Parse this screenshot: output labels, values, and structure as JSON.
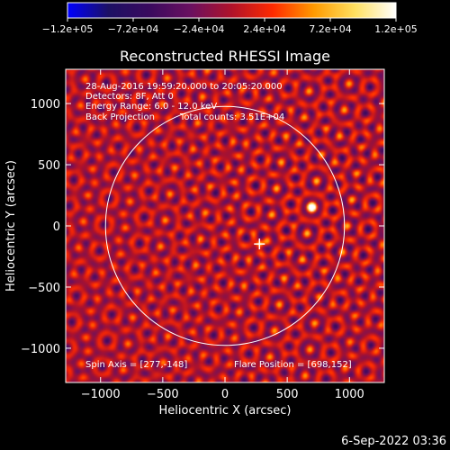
{
  "colorbar": {
    "tick_labels": [
      "-1.2e+05",
      "-7.2e+04",
      "-2.4e+04",
      "2.4e+04",
      "7.2e+04",
      "1.2e+05"
    ],
    "range": [
      -120000,
      120000
    ],
    "colormap": [
      "#0000ff",
      "#1c1064",
      "#3a0a5e",
      "#6a1060",
      "#b0122a",
      "#ff2a00",
      "#ff9a00",
      "#ffe060",
      "#ffffff"
    ]
  },
  "chart_data": {
    "type": "heatmap",
    "title": "Reconstructed RHESSI Image",
    "xlabel": "Heliocentric X (arcsec)",
    "ylabel": "Heliocentric Y (arcsec)",
    "xlim": [
      -1280,
      1280
    ],
    "ylim": [
      -1280,
      1280
    ],
    "x_ticks": [
      -1000,
      -500,
      0,
      500,
      1000
    ],
    "y_ticks": [
      -1000,
      -500,
      0,
      500,
      1000
    ],
    "x_tick_labels": [
      "−1000",
      "−500",
      "0",
      "500",
      "1000"
    ],
    "y_tick_labels": [
      "−1000",
      "−500",
      "0",
      "500",
      "1000"
    ],
    "solar_limb_radius_arcsec": 960,
    "info_lines": [
      "28-Aug-2016 19:59:20.000 to 20:05:20.000",
      "Detectors: 8F, Att 0",
      "Energy Range: 6.0 - 12.0 keV",
      "Back Projection",
      "Total counts: 3.51E+04"
    ],
    "spin_axis_label": "Spin Axis = [277,-148]",
    "flare_position_label": "Flare Position = [698,152]",
    "spin_axis": [
      277,
      -148
    ],
    "flare_position": [
      698,
      152
    ]
  },
  "footer": {
    "timestamp": "6-Sep-2022 03:36"
  }
}
